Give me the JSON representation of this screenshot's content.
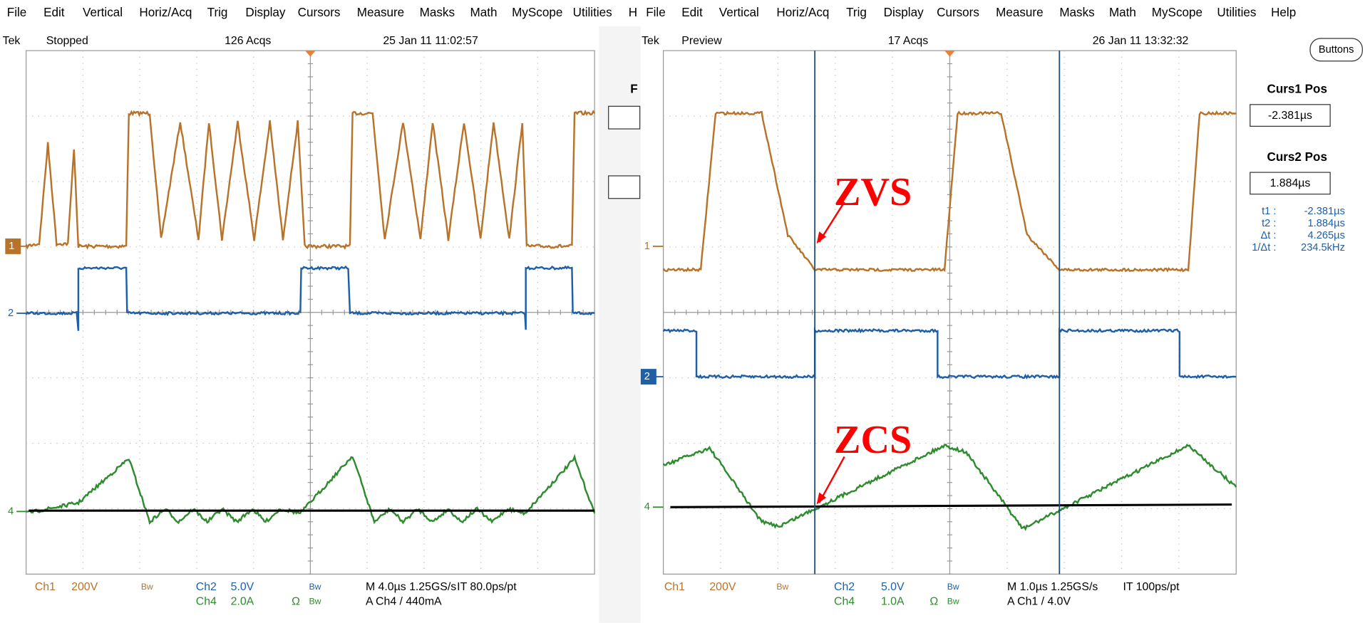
{
  "left_scope": {
    "menu": [
      "File",
      "Edit",
      "Vertical",
      "Horiz/Acq",
      "Trig",
      "Display",
      "Cursors",
      "Measure",
      "Masks",
      "Math",
      "MyScope",
      "Utilities",
      "H"
    ],
    "status": [
      "Tek",
      "Stopped",
      "126 Acqs",
      "25 Jan 11 11:02:57"
    ],
    "channel_markers": [
      "1",
      "2",
      "4"
    ],
    "readout": [
      "Ch1",
      "200V",
      "Bw",
      "Ch2",
      "5.0V",
      "Bw",
      "M 4.0µs 1.25GS/s",
      "IT 80.0ps/pt",
      "Ch4",
      "2.0A",
      "Ω",
      "Bw",
      "A Ch4 / 440mA"
    ]
  },
  "middle_fragment": "F",
  "right_scope": {
    "menu": [
      "File",
      "Edit",
      "Vertical",
      "Horiz/Acq",
      "Trig",
      "Display",
      "Cursors",
      "Measure",
      "Masks",
      "Math",
      "MyScope",
      "Utilities",
      "Help"
    ],
    "status": [
      "Tek",
      "Preview",
      "17 Acqs",
      "26 Jan 11 13:32:32"
    ],
    "channel_markers": [
      "1",
      "2",
      "4"
    ],
    "readout": [
      "Ch1",
      "200V",
      "Bw",
      "Ch2",
      "5.0V",
      "Bw",
      "M 1.0µs 1.25GS/s",
      "IT 100ps/pt",
      "Ch4",
      "1.0A",
      "Ω",
      "Bw",
      "A Ch1 / 4.0V"
    ]
  },
  "side_panel": {
    "button": "Buttons",
    "curs1_label": "Curs1 Pos",
    "curs1_value": "-2.381µs",
    "curs2_label": "Curs2 Pos",
    "curs2_value": "1.884µs",
    "readings": [
      [
        "t1 :",
        "-2.381µs"
      ],
      [
        "t2 :",
        "1.884µs"
      ],
      [
        "Δt :",
        "4.265µs"
      ],
      [
        "1/Δt :",
        "234.5kHz"
      ]
    ]
  },
  "annotations": [
    "ZVS",
    "ZCS"
  ]
}
